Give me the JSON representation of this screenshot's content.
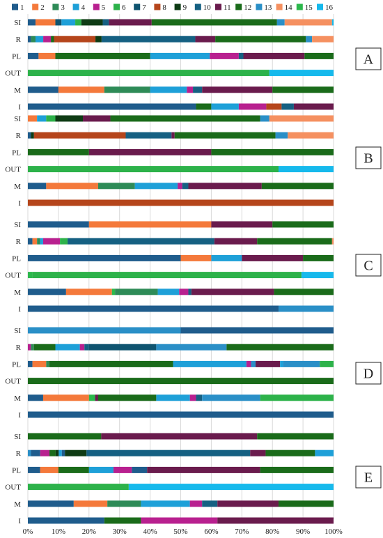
{
  "chart_data": {
    "type": "bar",
    "stacked": "percent",
    "orientation": "horizontal",
    "legend_position": "top",
    "series_names": [
      "1",
      "2",
      "3",
      "4",
      "5",
      "6",
      "7",
      "8",
      "9",
      "10",
      "11",
      "12",
      "13",
      "14",
      "15",
      "16"
    ],
    "colors": [
      "#1f5c8c",
      "#f4793b",
      "#2e8b57",
      "#1ea0d8",
      "#b8208f",
      "#2db24a",
      "#0f5470",
      "#b5451b",
      "#0e3b14",
      "#156082",
      "#6a1b4d",
      "#1a6b1a",
      "#2a8fc7",
      "#f59060",
      "#2cb84c",
      "#16b9ec"
    ],
    "x_ticks": [
      "0%",
      "10%",
      "20%",
      "30%",
      "40%",
      "50%",
      "60%",
      "70%",
      "80%",
      "90%",
      "100%"
    ],
    "xlim": [
      0,
      100
    ],
    "categories": [
      "SI",
      "R",
      "PL",
      "OUT",
      "M",
      "I"
    ],
    "panels": [
      {
        "label": "A",
        "rows": [
          {
            "category": "SI",
            "segments": [
              [
                1,
                2.5
              ],
              [
                2,
                6.5
              ],
              [
                7,
                2
              ],
              [
                4,
                4.5
              ],
              [
                6,
                2
              ],
              [
                9,
                7
              ],
              [
                10,
                2
              ],
              [
                11,
                14
              ],
              [
                12,
                41
              ],
              [
                13,
                2.5
              ],
              [
                14,
                15.5
              ],
              [
                16,
                0.5
              ]
            ]
          },
          {
            "category": "R",
            "segments": [
              [
                1,
                1
              ],
              [
                3,
                1.5
              ],
              [
                4,
                2.5
              ],
              [
                5,
                2.5
              ],
              [
                12,
                1
              ],
              [
                8,
                13.5
              ],
              [
                9,
                2
              ],
              [
                10,
                30.5
              ],
              [
                11,
                6.5
              ],
              [
                12,
                29.5
              ],
              [
                13,
                2
              ],
              [
                14,
                7
              ]
            ]
          },
          {
            "category": "PL",
            "segments": [
              [
                1,
                3.5
              ],
              [
                2,
                5.5
              ],
              [
                12,
                31
              ],
              [
                4,
                19.5
              ],
              [
                5,
                9.5
              ],
              [
                10,
                1.5
              ],
              [
                11,
                20
              ],
              [
                12,
                9.5
              ]
            ]
          },
          {
            "category": "OUT",
            "segments": [
              [
                6,
                79
              ],
              [
                16,
                21
              ]
            ]
          },
          {
            "category": "M",
            "segments": [
              [
                1,
                10
              ],
              [
                2,
                15
              ],
              [
                3,
                15
              ],
              [
                4,
                12
              ],
              [
                5,
                2
              ],
              [
                10,
                3
              ],
              [
                11,
                23
              ],
              [
                12,
                20
              ]
            ]
          },
          {
            "category": "I",
            "segments": [
              [
                1,
                55
              ],
              [
                12,
                5
              ],
              [
                4,
                9
              ],
              [
                5,
                9
              ],
              [
                8,
                5
              ],
              [
                10,
                4
              ],
              [
                11,
                13
              ]
            ]
          }
        ]
      },
      {
        "label": "B",
        "rows": [
          {
            "category": "SI",
            "segments": [
              [
                2,
                3
              ],
              [
                4,
                3
              ],
              [
                6,
                3
              ],
              [
                9,
                9
              ],
              [
                11,
                9
              ],
              [
                12,
                49
              ],
              [
                13,
                3
              ],
              [
                14,
                21
              ]
            ]
          },
          {
            "category": "R",
            "segments": [
              [
                1,
                1
              ],
              [
                9,
                1
              ],
              [
                8,
                30
              ],
              [
                10,
                15
              ],
              [
                11,
                1
              ],
              [
                12,
                33
              ],
              [
                13,
                4
              ],
              [
                14,
                15
              ]
            ]
          },
          {
            "category": "PL",
            "segments": [
              [
                12,
                20
              ],
              [
                11,
                40
              ],
              [
                12,
                40
              ]
            ]
          },
          {
            "category": "OUT",
            "segments": [
              [
                6,
                82
              ],
              [
                16,
                18
              ]
            ]
          },
          {
            "category": "M",
            "segments": [
              [
                1,
                6
              ],
              [
                2,
                17
              ],
              [
                3,
                12
              ],
              [
                4,
                14
              ],
              [
                5,
                1.5
              ],
              [
                10,
                2
              ],
              [
                11,
                24
              ],
              [
                12,
                23.5
              ]
            ]
          },
          {
            "category": "I",
            "segments": [
              [
                8,
                100
              ]
            ]
          }
        ]
      },
      {
        "label": "C",
        "rows": [
          {
            "category": "SI",
            "segments": [
              [
                1,
                20
              ],
              [
                2,
                40
              ],
              [
                11,
                20
              ],
              [
                12,
                20
              ]
            ]
          },
          {
            "category": "R",
            "segments": [
              [
                1,
                1.5
              ],
              [
                2,
                1.5
              ],
              [
                3,
                1
              ],
              [
                4,
                1
              ],
              [
                5,
                5.5
              ],
              [
                6,
                2.5
              ],
              [
                10,
                48
              ],
              [
                11,
                14
              ],
              [
                12,
                24.5
              ],
              [
                14,
                0.5
              ]
            ]
          },
          {
            "category": "PL",
            "segments": [
              [
                1,
                50
              ],
              [
                2,
                10
              ],
              [
                4,
                10
              ],
              [
                11,
                20
              ],
              [
                12,
                10
              ]
            ]
          },
          {
            "category": "OUT",
            "segments": [
              [
                15,
                1.5
              ],
              [
                6,
                88
              ],
              [
                16,
                10.5
              ]
            ]
          },
          {
            "category": "M",
            "segments": [
              [
                1,
                12.5
              ],
              [
                2,
                15
              ],
              [
                15,
                1
              ],
              [
                3,
                14
              ],
              [
                4,
                7
              ],
              [
                5,
                3
              ],
              [
                10,
                1
              ],
              [
                11,
                27
              ],
              [
                12,
                19.5
              ]
            ]
          },
          {
            "category": "I",
            "segments": [
              [
                1,
                82
              ],
              [
                13,
                18
              ]
            ]
          }
        ]
      },
      {
        "label": "D",
        "rows": [
          {
            "category": "SI",
            "segments": [
              [
                13,
                50
              ],
              [
                1,
                50
              ]
            ]
          },
          {
            "category": "R",
            "segments": [
              [
                5,
                1
              ],
              [
                3,
                1
              ],
              [
                12,
                7
              ],
              [
                4,
                8
              ],
              [
                5,
                1.5
              ],
              [
                10,
                1.5
              ],
              [
                7,
                22
              ],
              [
                13,
                23
              ],
              [
                12,
                35
              ]
            ]
          },
          {
            "category": "PL",
            "segments": [
              [
                1,
                1.5
              ],
              [
                2,
                4.5
              ],
              [
                3,
                1
              ],
              [
                12,
                40.5
              ],
              [
                4,
                24
              ],
              [
                5,
                1.5
              ],
              [
                13,
                1.5
              ],
              [
                11,
                8
              ],
              [
                4,
                1
              ],
              [
                13,
                12
              ],
              [
                6,
                4.5
              ]
            ]
          },
          {
            "category": "OUT",
            "segments": [
              [
                12,
                100
              ]
            ]
          },
          {
            "category": "M",
            "segments": [
              [
                1,
                5
              ],
              [
                2,
                15
              ],
              [
                15,
                2
              ],
              [
                11,
                1
              ],
              [
                12,
                19
              ],
              [
                4,
                11
              ],
              [
                5,
                2
              ],
              [
                10,
                2
              ],
              [
                13,
                19
              ],
              [
                6,
                24
              ]
            ]
          },
          {
            "category": "I",
            "segments": [
              [
                1,
                100
              ]
            ]
          }
        ]
      },
      {
        "label": "E",
        "rows": [
          {
            "category": "SI",
            "segments": [
              [
                12,
                24
              ],
              [
                11,
                51
              ],
              [
                12,
                25
              ]
            ]
          },
          {
            "category": "R",
            "segments": [
              [
                13,
                1
              ],
              [
                1,
                3
              ],
              [
                5,
                3
              ],
              [
                12,
                2
              ],
              [
                9,
                1
              ],
              [
                4,
                1
              ],
              [
                1,
                1
              ],
              [
                9,
                7
              ],
              [
                10,
                53
              ],
              [
                11,
                5
              ],
              [
                12,
                16
              ],
              [
                4,
                6
              ]
            ]
          },
          {
            "category": "PL",
            "segments": [
              [
                1,
                4
              ],
              [
                2,
                6
              ],
              [
                12,
                10
              ],
              [
                4,
                8
              ],
              [
                5,
                6
              ],
              [
                1,
                5
              ],
              [
                11,
                37
              ],
              [
                12,
                24
              ]
            ]
          },
          {
            "category": "OUT",
            "segments": [
              [
                6,
                33
              ],
              [
                16,
                67
              ]
            ]
          },
          {
            "category": "M",
            "segments": [
              [
                1,
                15
              ],
              [
                2,
                11
              ],
              [
                3,
                11
              ],
              [
                4,
                16
              ],
              [
                5,
                4
              ],
              [
                10,
                5
              ],
              [
                11,
                20
              ],
              [
                12,
                18
              ]
            ]
          },
          {
            "category": "I",
            "segments": [
              [
                1,
                25
              ],
              [
                12,
                12
              ],
              [
                5,
                25
              ],
              [
                11,
                38
              ]
            ]
          }
        ]
      }
    ]
  }
}
